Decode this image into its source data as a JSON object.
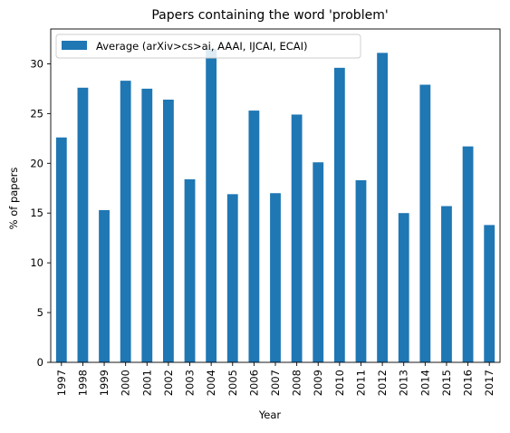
{
  "chart_data": {
    "type": "bar",
    "title": "Papers containing the word 'problem'",
    "xlabel": "Year",
    "ylabel": "% of papers",
    "ylim": [
      0,
      33.5
    ],
    "yticks": [
      0,
      5,
      10,
      15,
      20,
      25,
      30
    ],
    "categories": [
      "1997",
      "1998",
      "1999",
      "2000",
      "2001",
      "2002",
      "2003",
      "2004",
      "2005",
      "2006",
      "2007",
      "2008",
      "2009",
      "2010",
      "2011",
      "2012",
      "2013",
      "2014",
      "2015",
      "2016",
      "2017"
    ],
    "series": [
      {
        "name": "Average (arXiv>cs>ai, AAAI, IJCAI, ECAI)",
        "color": "#1f77b4",
        "values": [
          22.6,
          27.6,
          15.3,
          28.3,
          27.5,
          26.4,
          18.4,
          31.5,
          16.9,
          25.3,
          17.0,
          24.9,
          20.1,
          29.6,
          18.3,
          31.1,
          15.0,
          27.9,
          15.7,
          21.7,
          13.8
        ]
      }
    ],
    "legend_position": "top-left",
    "grid": false
  }
}
